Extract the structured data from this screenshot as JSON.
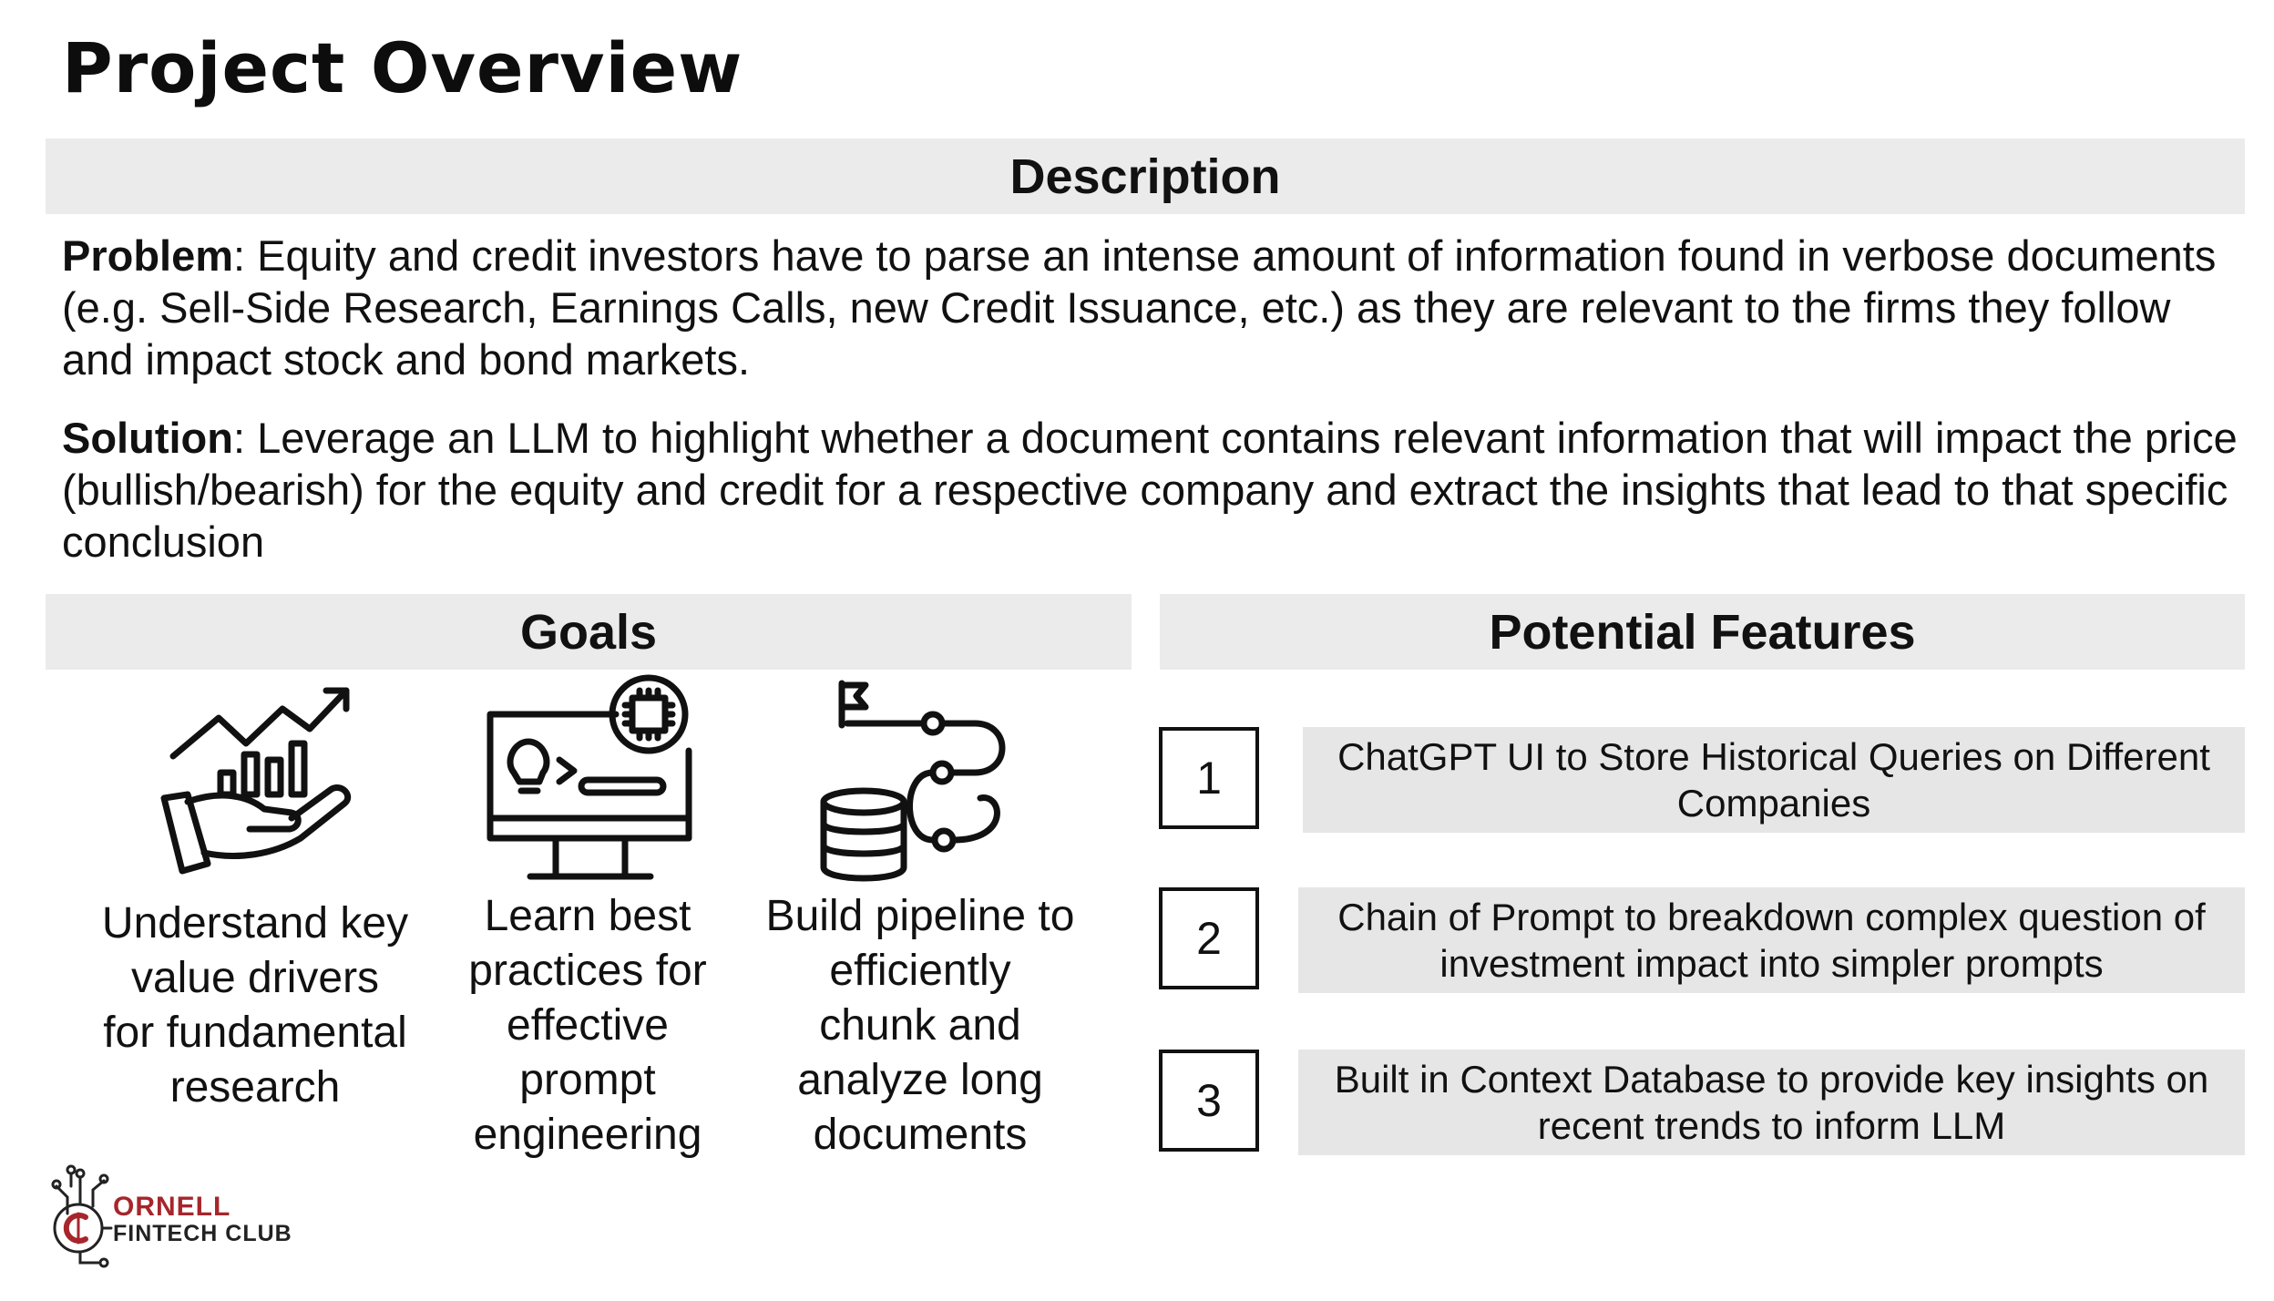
{
  "title": "Project Overview",
  "description": {
    "header": "Description",
    "problem_label": "Problem",
    "problem_text": ": Equity and credit investors have to parse an intense amount of information found in verbose documents (e.g. Sell-Side Research, Earnings Calls, new Credit Issuance, etc.) as they are relevant to the firms they follow and impact stock and bond markets.",
    "solution_label": "Solution",
    "solution_text": ": Leverage an LLM to highlight whether a document contains relevant information that will impact the price (bullish/bearish) for the equity and credit for a respective company and extract the insights that lead to that specific conclusion"
  },
  "goals": {
    "header": "Goals",
    "items": [
      {
        "icon": "growth-hand-icon",
        "text": "Understand key value drivers for fundamental research"
      },
      {
        "icon": "monitor-idea-icon",
        "text": "Learn best practices for effective prompt engineering"
      },
      {
        "icon": "data-pipeline-icon",
        "text": "Build pipeline to efficiently chunk and analyze long documents"
      }
    ]
  },
  "features": {
    "header": "Potential Features",
    "items": [
      {
        "number": "1",
        "text": "ChatGPT UI to Store Historical Queries on Different Companies"
      },
      {
        "number": "2",
        "text": "Chain of Prompt to breakdown complex question of investment impact into simpler prompts"
      },
      {
        "number": "3",
        "text": "Built in Context Database to provide key insights on recent trends to inform LLM"
      }
    ]
  },
  "logo": {
    "line1": "ORNELL",
    "line2": "FINTECH CLUB",
    "accent": "#a6262b"
  }
}
